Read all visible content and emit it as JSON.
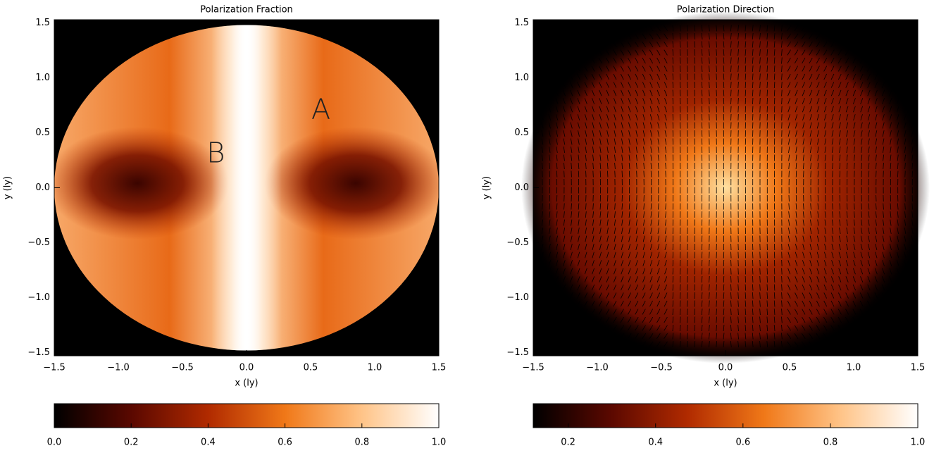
{
  "chart_data": [
    {
      "type": "heatmap",
      "title": "Polarization Fraction",
      "x_label": "x (ly)",
      "y_label": "y (ly)",
      "xlim": [
        -1.5,
        1.5
      ],
      "ylim": [
        -1.53,
        1.53
      ],
      "xticks": [
        {
          "value": -1.5,
          "label": "−1.5"
        },
        {
          "value": -1.0,
          "label": "−1.0"
        },
        {
          "value": -0.5,
          "label": "−0.5"
        },
        {
          "value": 0,
          "label": "0.0"
        },
        0.5,
        {
          "value": 1.0,
          "label": "1.0"
        },
        1.5
      ],
      "yticks": [
        {
          "value": -1.5,
          "label": "−1.5"
        },
        {
          "value": -1.0,
          "label": "−1.0"
        },
        {
          "value": -0.5,
          "label": "−0.5"
        },
        {
          "value": 0,
          "label": "0.0"
        },
        0.5,
        {
          "value": 1.0,
          "label": "1.0"
        },
        1.5
      ],
      "colormap": [
        "#000000",
        "#5a0800",
        "#b02a00",
        "#f07818",
        "#ffc488",
        "#ffffff"
      ],
      "clim": [
        0,
        1
      ],
      "cticks": [
        {
          "value": 0,
          "label": "0.0"
        },
        0.2,
        0.4,
        0.6,
        0.8,
        {
          "value": 1,
          "label": "1.0"
        }
      ],
      "annotations": [
        {
          "text": "A",
          "x": 0.58,
          "y": 0.7
        },
        {
          "text": "B",
          "x": -0.24,
          "y": 0.3
        }
      ]
    },
    {
      "type": "vector-field",
      "title": "Polarization Direction",
      "x_label": "x (ly)",
      "y_label": "y (ly)",
      "xlim": [
        -1.5,
        1.5
      ],
      "ylim": [
        -1.53,
        1.53
      ],
      "xticks": [
        {
          "value": -1.5,
          "label": "−1.5"
        },
        {
          "value": -1.0,
          "label": "−1.0"
        },
        {
          "value": -0.5,
          "label": "−0.5"
        },
        {
          "value": 0,
          "label": "0.0"
        },
        0.5,
        {
          "value": 1.0,
          "label": "1.0"
        },
        1.5
      ],
      "yticks": [
        {
          "value": -1.5,
          "label": "−1.5"
        },
        {
          "value": -1.0,
          "label": "−1.0"
        },
        {
          "value": -0.5,
          "label": "−0.5"
        },
        {
          "value": 0,
          "label": "0.0"
        },
        0.5,
        {
          "value": 1.0,
          "label": "1.0"
        },
        1.5
      ],
      "colormap": [
        "#000000",
        "#5a0800",
        "#b02a00",
        "#f07818",
        "#ffc488",
        "#ffffff"
      ],
      "clim": [
        0.12,
        1
      ],
      "cticks": [
        0.2,
        0.4,
        0.6,
        0.8,
        {
          "value": 1,
          "label": "1.0"
        }
      ]
    }
  ]
}
